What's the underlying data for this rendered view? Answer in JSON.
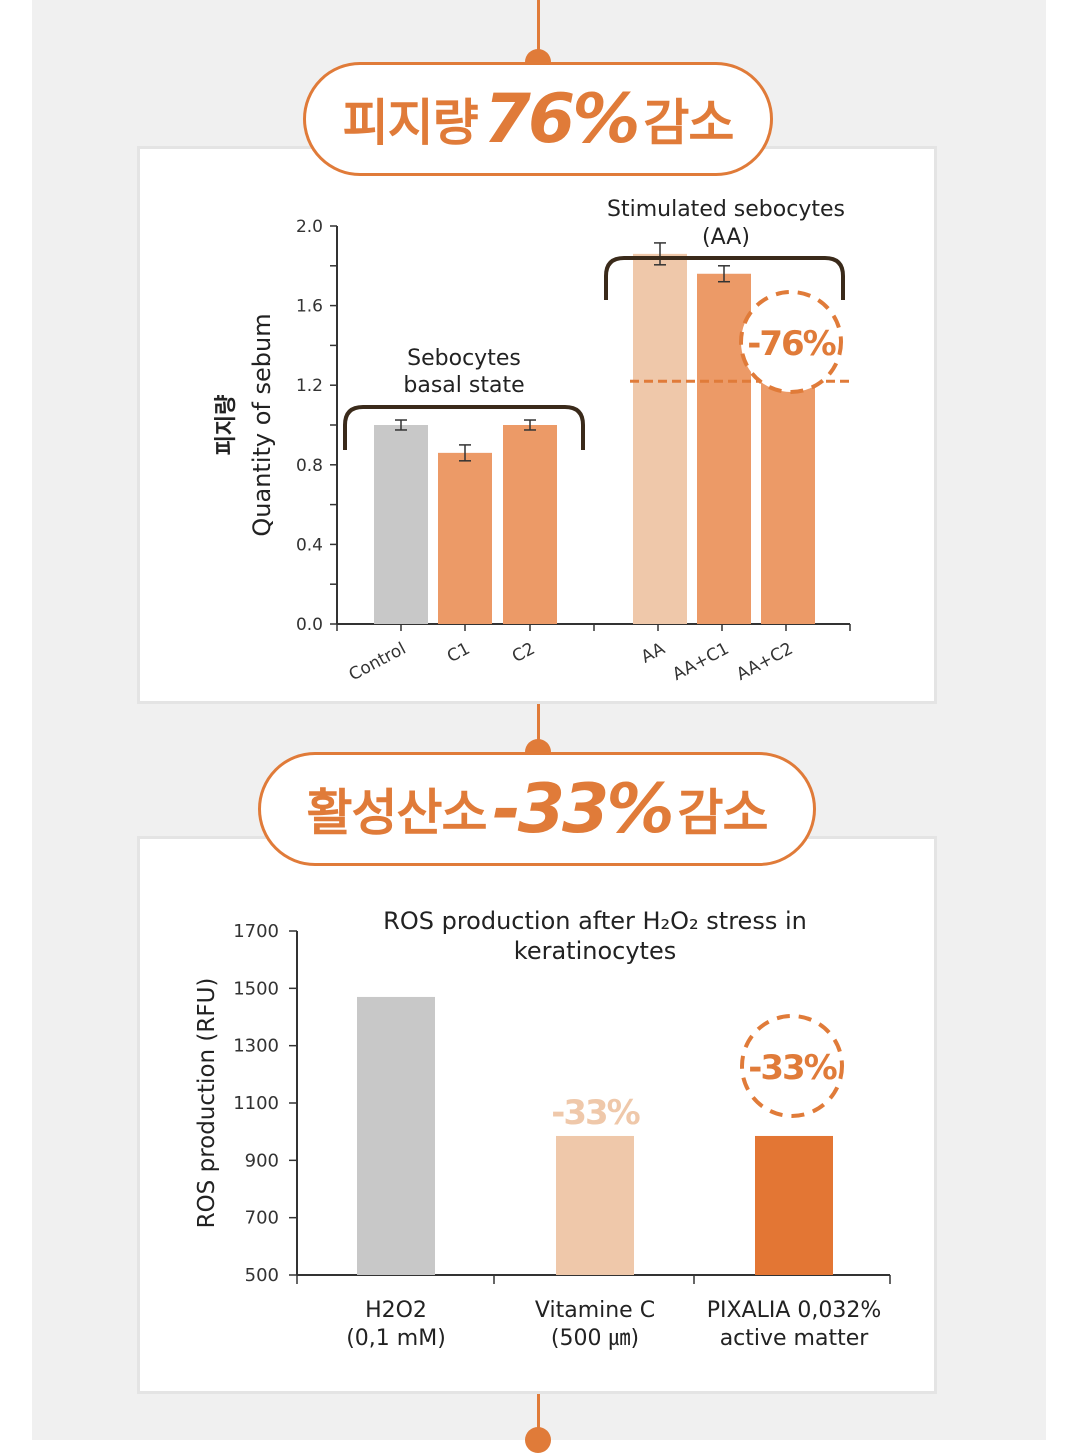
{
  "section1": {
    "heading_pre": "피지량",
    "heading_value": "76%",
    "heading_post": "감소"
  },
  "section2": {
    "heading_pre": "활성산소",
    "heading_value": "-33%",
    "heading_post": "감소"
  },
  "colors": {
    "accent": "#e07b39",
    "gray_bar": "#c8c8c8",
    "orange_bar": "#ec9a67",
    "light_bar": "#efc8aa",
    "deep_bar": "#e37634"
  },
  "chart_data": [
    {
      "type": "bar",
      "title": "",
      "ylabel_ko": "피지량",
      "ylabel": "Quantity of sebum",
      "categories": [
        "Control",
        "C1",
        "C2",
        "AA",
        "AA+C1",
        "AA+C2"
      ],
      "values": [
        1.0,
        0.86,
        1.0,
        1.86,
        1.76,
        1.22
      ],
      "errors": [
        0.025,
        0.04,
        0.025,
        0.055,
        0.04,
        0.02
      ],
      "bar_colors": [
        "gray_bar",
        "orange_bar",
        "orange_bar",
        "light_bar",
        "orange_bar",
        "orange_bar"
      ],
      "ylim": [
        0.0,
        2.0
      ],
      "yticks": [
        "0.0",
        "0.4",
        "0.8",
        "1.2",
        "1.6",
        "2.0"
      ],
      "groups": [
        {
          "label_line1": "Sebocytes",
          "label_line2": "basal state",
          "members": [
            "Control",
            "C1",
            "C2"
          ]
        },
        {
          "label_line1": "Stimulated sebocytes",
          "label_line2": "(AA)",
          "members": [
            "AA",
            "AA+C1",
            "AA+C2"
          ]
        }
      ],
      "annotation": "-76%",
      "grid": false
    },
    {
      "type": "bar",
      "title_line1": "ROS production after H₂O₂ stress in",
      "title_line2": "keratinocytes",
      "ylabel": "ROS production (RFU)",
      "categories": [
        {
          "line1": "H2O2",
          "line2": "(0,1 mM)"
        },
        {
          "line1": "Vitamine C",
          "line2": "(500 ㎛)"
        },
        {
          "line1": "PIXALIA 0,032%",
          "line2": "active matter"
        }
      ],
      "values": [
        1470,
        985,
        985
      ],
      "bar_colors": [
        "gray_bar",
        "light_bar",
        "deep_bar"
      ],
      "ylim": [
        500,
        1700
      ],
      "yticks": [
        "500",
        "700",
        "900",
        "1100",
        "1300",
        "1500",
        "1700"
      ],
      "bar_labels": [
        "",
        "-33%",
        "-33%"
      ],
      "grid": false
    }
  ]
}
